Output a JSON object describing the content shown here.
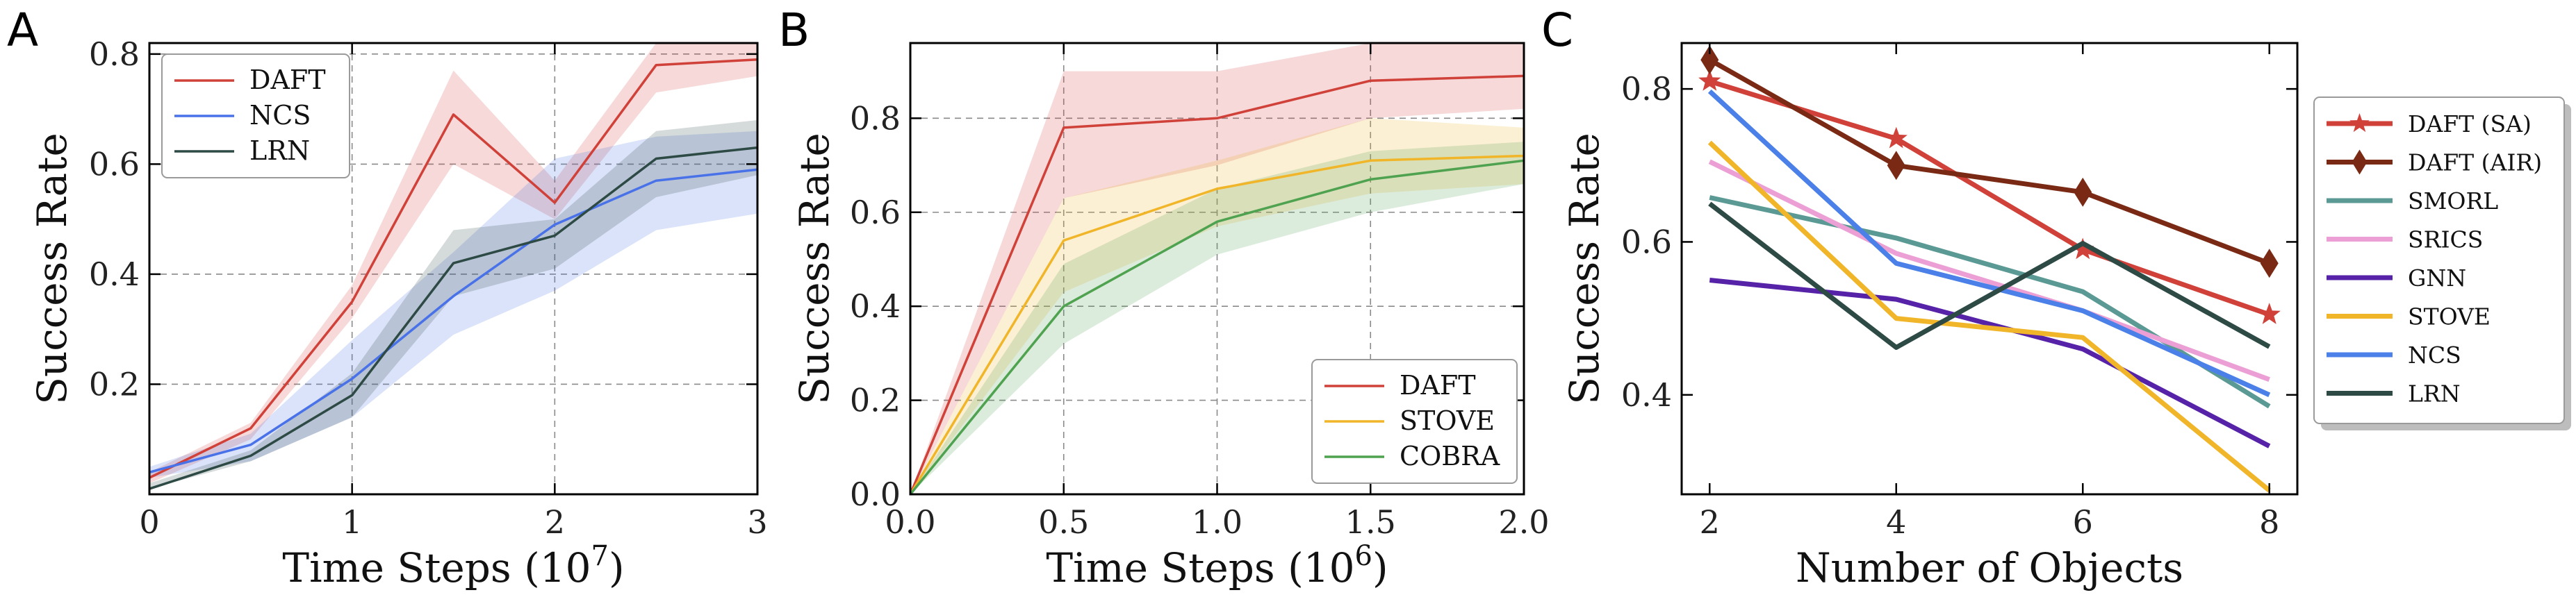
{
  "chart_data": [
    {
      "panel": "A",
      "type": "line",
      "xlabel": "Time Steps (10",
      "xlabel_exp": "7",
      "xlabel_close": ")",
      "ylabel": "Success Rate",
      "xlim": [
        0,
        3
      ],
      "ylim": [
        0.0,
        0.82
      ],
      "xticks": [
        0,
        1,
        2,
        3
      ],
      "xticklabels": [
        "0",
        "1",
        "2",
        "3"
      ],
      "yticks": [
        0.2,
        0.4,
        0.6,
        0.8
      ],
      "yticklabels": [
        "0.2",
        "0.4",
        "0.6",
        "0.8"
      ],
      "grid": true,
      "legend": "top-left",
      "x": [
        0,
        0.5,
        1,
        1.5,
        2,
        2.5,
        3
      ],
      "series": [
        {
          "name": "DAFT",
          "color": "#d0413a",
          "values": [
            0.03,
            0.12,
            0.35,
            0.69,
            0.53,
            0.78,
            0.79
          ],
          "lower": [
            0.02,
            0.1,
            0.32,
            0.6,
            0.5,
            0.73,
            0.76
          ],
          "upper": [
            0.04,
            0.13,
            0.38,
            0.77,
            0.57,
            0.82,
            0.82
          ]
        },
        {
          "name": "NCS",
          "color": "#4a72e8",
          "values": [
            0.04,
            0.09,
            0.21,
            0.36,
            0.49,
            0.57,
            0.59
          ],
          "lower": [
            0.03,
            0.06,
            0.14,
            0.29,
            0.37,
            0.48,
            0.51
          ],
          "upper": [
            0.05,
            0.11,
            0.28,
            0.44,
            0.61,
            0.65,
            0.66
          ]
        },
        {
          "name": "LRN",
          "color": "#2e4a45",
          "values": [
            0.01,
            0.07,
            0.18,
            0.42,
            0.47,
            0.61,
            0.63
          ],
          "lower": [
            0.01,
            0.06,
            0.14,
            0.36,
            0.41,
            0.54,
            0.58
          ],
          "upper": [
            0.02,
            0.08,
            0.22,
            0.48,
            0.5,
            0.66,
            0.68
          ]
        }
      ]
    },
    {
      "panel": "B",
      "type": "line",
      "xlabel": "Time Steps (10",
      "xlabel_exp": "6",
      "xlabel_close": ")",
      "ylabel": "Success Rate",
      "xlim": [
        0,
        2
      ],
      "ylim": [
        0.0,
        0.96
      ],
      "xticks": [
        0,
        0.5,
        1,
        1.5,
        2
      ],
      "xticklabels": [
        "0.0",
        "0.5",
        "1.0",
        "1.5",
        "2.0"
      ],
      "yticks": [
        0,
        0.2,
        0.4,
        0.6,
        0.8
      ],
      "yticklabels": [
        "0.0",
        "0.2",
        "0.4",
        "0.6",
        "0.8"
      ],
      "grid": true,
      "legend": "bottom-right",
      "x": [
        0,
        0.5,
        1,
        1.5,
        2
      ],
      "series": [
        {
          "name": "DAFT",
          "color": "#d0413a",
          "values": [
            0.0,
            0.78,
            0.8,
            0.88,
            0.89
          ],
          "lower": [
            0.0,
            0.63,
            0.7,
            0.8,
            0.82
          ],
          "upper": [
            0.0,
            0.9,
            0.9,
            0.96,
            0.96
          ]
        },
        {
          "name": "STOVE",
          "color": "#f0b528",
          "values": [
            0.0,
            0.54,
            0.65,
            0.71,
            0.72
          ],
          "lower": [
            0.0,
            0.43,
            0.57,
            0.64,
            0.66
          ],
          "upper": [
            0.0,
            0.63,
            0.71,
            0.8,
            0.78
          ]
        },
        {
          "name": "COBRA",
          "color": "#4fa24f",
          "values": [
            0.0,
            0.4,
            0.58,
            0.67,
            0.71
          ],
          "lower": [
            0.0,
            0.32,
            0.51,
            0.6,
            0.66
          ],
          "upper": [
            0.0,
            0.49,
            0.65,
            0.73,
            0.75
          ]
        }
      ]
    },
    {
      "panel": "C",
      "type": "line",
      "xlabel": "Number of Objects",
      "ylabel": "Success Rate",
      "xlim": [
        1.7,
        8.3
      ],
      "ylim": [
        0.27,
        0.86
      ],
      "xticks": [
        2,
        4,
        6,
        8
      ],
      "xticklabels": [
        "2",
        "4",
        "6",
        "8"
      ],
      "yticks": [
        0.4,
        0.6,
        0.8
      ],
      "yticklabels": [
        "0.4",
        "0.6",
        "0.8"
      ],
      "grid": false,
      "legend": "outside-right",
      "x": [
        2,
        4,
        6,
        8
      ],
      "series": [
        {
          "name": "DAFT (SA)",
          "color": "#d0413a",
          "marker": "star",
          "values": [
            0.81,
            0.735,
            0.59,
            0.505
          ]
        },
        {
          "name": "DAFT (AIR)",
          "color": "#7a2a14",
          "marker": "diamond",
          "values": [
            0.838,
            0.7,
            0.665,
            0.572
          ]
        },
        {
          "name": "SMORL",
          "color": "#5b9a94",
          "values": [
            0.658,
            0.605,
            0.535,
            0.385
          ]
        },
        {
          "name": "SRICS",
          "color": "#ec9fd4",
          "values": [
            0.705,
            0.585,
            0.51,
            0.42
          ]
        },
        {
          "name": "GNN",
          "color": "#5522a8",
          "values": [
            0.55,
            0.525,
            0.46,
            0.333
          ]
        },
        {
          "name": "STOVE",
          "color": "#f0b528",
          "values": [
            0.73,
            0.5,
            0.475,
            0.275
          ]
        },
        {
          "name": "NCS",
          "color": "#4a80e8",
          "values": [
            0.797,
            0.572,
            0.51,
            0.4
          ]
        },
        {
          "name": "LRN",
          "color": "#2e4a45",
          "values": [
            0.65,
            0.462,
            0.598,
            0.463
          ]
        }
      ]
    }
  ]
}
